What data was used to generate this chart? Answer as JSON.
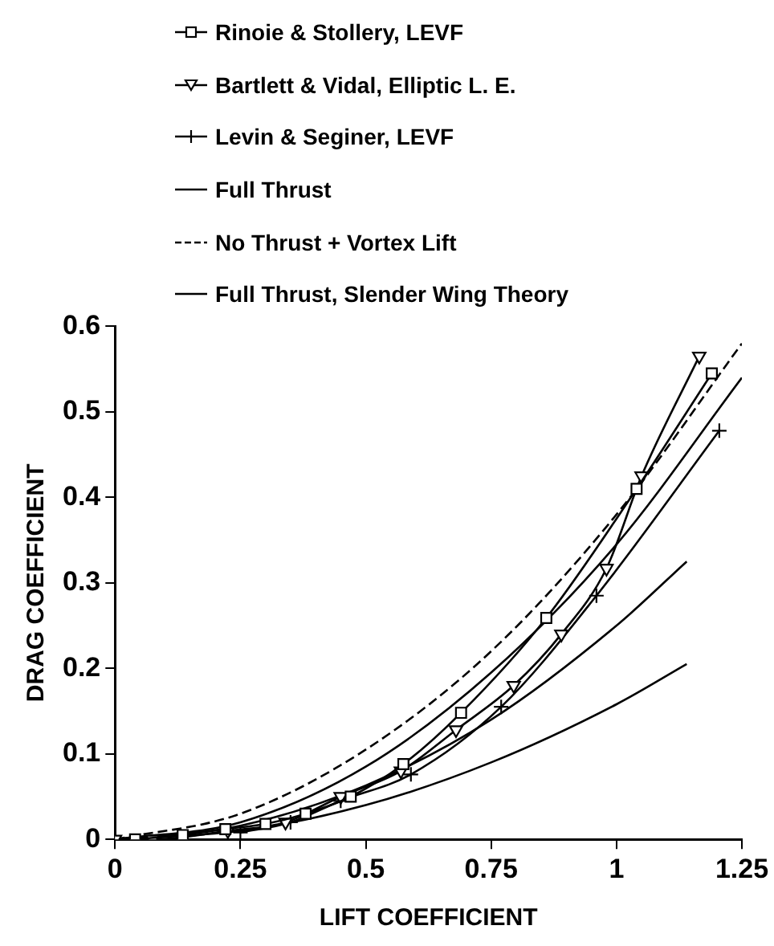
{
  "chart_data": {
    "type": "line",
    "xlabel": "LIFT COEFFICIENT",
    "ylabel": "DRAG COEFFICIENT",
    "xlim": [
      0,
      1.25
    ],
    "ylim": [
      0,
      0.6
    ],
    "xticks": [
      0,
      0.25,
      0.5,
      0.75,
      1,
      1.25
    ],
    "yticks": [
      0,
      0.1,
      0.2,
      0.3,
      0.4,
      0.5,
      0.6
    ],
    "grid": false,
    "legend": "top",
    "series": [
      {
        "name": "Rinoie & Stollery, LEVF",
        "color": "#000000",
        "marker": "square",
        "line_style": "solid",
        "x": [
          0.04,
          0.135,
          0.22,
          0.3,
          0.38,
          0.47,
          0.575,
          0.69,
          0.86,
          1.04,
          1.19
        ],
        "values": [
          0,
          0.005,
          0.012,
          0.018,
          0.03,
          0.05,
          0.088,
          0.148,
          0.259,
          0.41,
          0.545
        ]
      },
      {
        "name": "Bartlett & Vidal, Elliptic L. E.",
        "color": "#000000",
        "marker": "triangle",
        "line_style": "solid",
        "x": [
          0,
          0.075,
          0.225,
          0.34,
          0.45,
          0.57,
          0.68,
          0.795,
          0.89,
          0.98,
          1.05,
          1.165
        ],
        "values": [
          0,
          0,
          0.01,
          0.02,
          0.05,
          0.08,
          0.128,
          0.18,
          0.24,
          0.317,
          0.425,
          0.565
        ]
      },
      {
        "name": "Levin & Seginer, LEVF",
        "color": "#000000",
        "marker": "cross",
        "line_style": "solid",
        "x": [
          0.25,
          0.35,
          0.45,
          0.59,
          0.77,
          0.96,
          1.205
        ],
        "values": [
          0.008,
          0.02,
          0.045,
          0.076,
          0.155,
          0.285,
          0.478
        ]
      },
      {
        "name": "Full Thrust",
        "color": "#000000",
        "marker": "none",
        "line_style": "solid",
        "x": [
          0,
          0.25,
          0.5,
          0.75,
          1,
          1.14
        ],
        "values": [
          0,
          0.01,
          0.04,
          0.09,
          0.158,
          0.205
        ]
      },
      {
        "name": "No Thrust + Vortex Lift",
        "color": "#000000",
        "marker": "none",
        "line_style": "dashed",
        "x": [
          0,
          0.25,
          0.5,
          0.75,
          1,
          1.25
        ],
        "values": [
          0,
          0.03,
          0.105,
          0.22,
          0.38,
          0.58
        ]
      },
      {
        "name": "Full Thrust, Slender Wing Theory",
        "color": "#000000",
        "marker": "none",
        "line_style": "solid",
        "x": [
          0,
          0.25,
          0.5,
          0.75,
          1,
          1.14
        ],
        "values": [
          0,
          0.016,
          0.063,
          0.14,
          0.25,
          0.325
        ]
      },
      {
        "color": "#000000",
        "marker": "none",
        "line_style": "solid",
        "x": [
          0,
          0.25,
          0.5,
          0.75,
          1,
          1.25
        ],
        "values": [
          0,
          0.02,
          0.085,
          0.195,
          0.345,
          0.54
        ]
      }
    ]
  }
}
